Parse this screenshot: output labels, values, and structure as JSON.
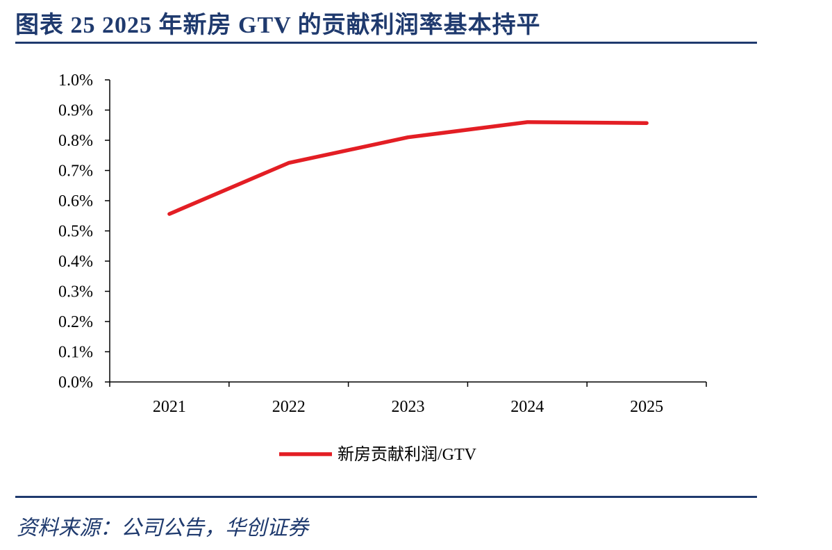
{
  "figure": {
    "title": "图表 25   2025 年新房 GTV 的贡献利润率基本持平",
    "source": "资料来源：公司公告，华创证券"
  },
  "colors": {
    "accent": "#1f3a6e",
    "series": "#e31e24"
  },
  "chart_data": {
    "type": "line",
    "title": "",
    "xlabel": "",
    "ylabel": "",
    "categories": [
      "2021",
      "2022",
      "2023",
      "2024",
      "2025"
    ],
    "series": [
      {
        "name": "新房贡献利润/GTV",
        "values": [
          0.00556,
          0.00725,
          0.0081,
          0.0086,
          0.00857
        ]
      }
    ],
    "ylim": [
      0,
      0.01
    ],
    "yticks": [
      0,
      0.001,
      0.002,
      0.003,
      0.004,
      0.005,
      0.006,
      0.007,
      0.008,
      0.009,
      0.01
    ],
    "ytick_labels": [
      "0.0%",
      "0.1%",
      "0.2%",
      "0.3%",
      "0.4%",
      "0.5%",
      "0.6%",
      "0.7%",
      "0.8%",
      "0.9%",
      "1.0%"
    ],
    "grid": false,
    "legend": "bottom-center"
  }
}
